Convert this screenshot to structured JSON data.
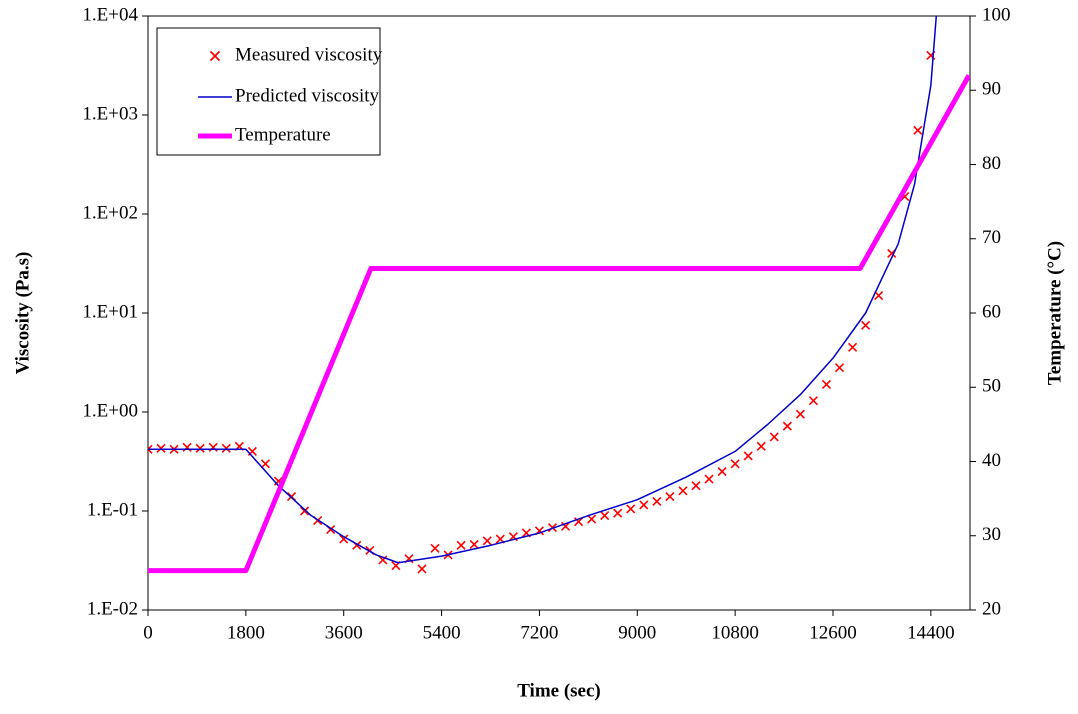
{
  "chart_data": {
    "type": "line",
    "xlabel": "Time (sec)",
    "ylabel": "Viscosity (Pa.s)",
    "y2label": "Temperature (°C)",
    "xlim": [
      0,
      15120
    ],
    "xticks": [
      0,
      1800,
      3600,
      5400,
      7200,
      9000,
      10800,
      12600,
      14400
    ],
    "ylim": [
      0.01,
      10000
    ],
    "ylog": true,
    "yticks": [
      {
        "value": 0.01,
        "label": "1.E-02"
      },
      {
        "value": 0.1,
        "label": "1.E-01"
      },
      {
        "value": 1,
        "label": "1.E+00"
      },
      {
        "value": 10,
        "label": "1.E+01"
      },
      {
        "value": 100,
        "label": "1.E+02"
      },
      {
        "value": 1000,
        "label": "1.E+03"
      },
      {
        "value": 10000,
        "label": "1.E+04"
      }
    ],
    "y2lim": [
      20,
      100
    ],
    "y2ticks": [
      20,
      30,
      40,
      50,
      60,
      70,
      80,
      90,
      100
    ],
    "legend": "upper left",
    "series": [
      {
        "name": "Measured viscosity",
        "color": "#ff0000",
        "mode": "markers",
        "x": [
          0,
          240,
          480,
          720,
          960,
          1200,
          1440,
          1680,
          1920,
          2160,
          2400,
          2640,
          2880,
          3120,
          3360,
          3600,
          3840,
          4080,
          4320,
          4560,
          4800,
          5040,
          5280,
          5520,
          5760,
          6000,
          6240,
          6480,
          6720,
          6960,
          7200,
          7440,
          7680,
          7920,
          8160,
          8400,
          8640,
          8880,
          9120,
          9360,
          9600,
          9840,
          10080,
          10320,
          10560,
          10800,
          11040,
          11280,
          11520,
          11760,
          12000,
          12240,
          12480,
          12720,
          12960,
          13200,
          13440,
          13680,
          13920,
          14160,
          14400
        ],
        "values": [
          0.42,
          0.43,
          0.42,
          0.44,
          0.43,
          0.44,
          0.43,
          0.45,
          0.4,
          0.3,
          0.2,
          0.14,
          0.1,
          0.08,
          0.065,
          0.052,
          0.045,
          0.04,
          0.032,
          0.028,
          0.033,
          0.026,
          0.042,
          0.036,
          0.045,
          0.046,
          0.05,
          0.052,
          0.055,
          0.06,
          0.063,
          0.068,
          0.07,
          0.078,
          0.083,
          0.09,
          0.095,
          0.105,
          0.115,
          0.125,
          0.14,
          0.16,
          0.18,
          0.21,
          0.25,
          0.3,
          0.36,
          0.45,
          0.56,
          0.72,
          0.95,
          1.3,
          1.9,
          2.8,
          4.5,
          7.5,
          15,
          40,
          150,
          700,
          4000
        ]
      },
      {
        "name": "Predicted viscosity",
        "color": "#0000cc",
        "mode": "line",
        "line_width": 1.5,
        "x": [
          0,
          1800,
          2400,
          3000,
          3600,
          4200,
          4600,
          5400,
          6300,
          7200,
          8100,
          9000,
          9900,
          10800,
          11400,
          12000,
          12600,
          13200,
          13800,
          14100,
          14400,
          14500
        ],
        "values": [
          0.42,
          0.42,
          0.18,
          0.09,
          0.055,
          0.036,
          0.03,
          0.035,
          0.045,
          0.06,
          0.09,
          0.13,
          0.22,
          0.4,
          0.75,
          1.5,
          3.5,
          10,
          50,
          200,
          2000,
          10000
        ]
      },
      {
        "name": "Temperature",
        "color": "#ff00ff",
        "mode": "line",
        "line_width": 5,
        "axis": "y2",
        "x": [
          0,
          1800,
          4100,
          13100,
          15100
        ],
        "values": [
          25.3,
          25.3,
          66,
          66,
          92
        ]
      }
    ]
  }
}
